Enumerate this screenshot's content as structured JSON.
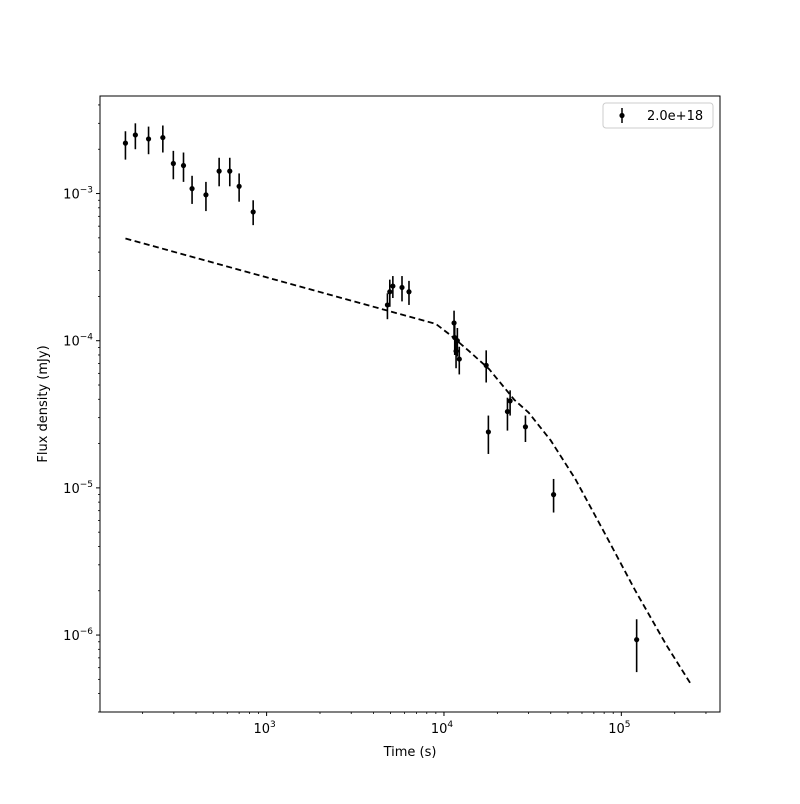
{
  "chart_data": {
    "type": "scatter",
    "title": "",
    "xlabel": "Time (s)",
    "ylabel": "Flux density (mJy)",
    "xscale": "log",
    "yscale": "log",
    "xlim": [
      115,
      360000
    ],
    "ylim": [
      3e-07,
      0.0046
    ],
    "grid": false,
    "legend_position": "top-right",
    "x_ticks": [
      {
        "value": 1000,
        "base": "10",
        "exp": "3"
      },
      {
        "value": 10000,
        "base": "10",
        "exp": "4"
      },
      {
        "value": 100000,
        "base": "10",
        "exp": "5"
      }
    ],
    "y_ticks": [
      {
        "value": 1e-06,
        "base": "10",
        "exp": "−6"
      },
      {
        "value": 1e-05,
        "base": "10",
        "exp": "−5"
      },
      {
        "value": 0.0001,
        "base": "10",
        "exp": "−4"
      },
      {
        "value": 0.001,
        "base": "10",
        "exp": "−3"
      }
    ],
    "series": [
      {
        "name": "2.0e+18",
        "color": "#000000",
        "marker": "circle",
        "points": [
          {
            "x": 160,
            "y": 0.0022,
            "ylo": 0.0017,
            "yhi": 0.00265
          },
          {
            "x": 182,
            "y": 0.0025,
            "ylo": 0.002,
            "yhi": 0.003
          },
          {
            "x": 216,
            "y": 0.00235,
            "ylo": 0.00185,
            "yhi": 0.00285
          },
          {
            "x": 260,
            "y": 0.0024,
            "ylo": 0.0019,
            "yhi": 0.0029
          },
          {
            "x": 298,
            "y": 0.0016,
            "ylo": 0.00125,
            "yhi": 0.00195
          },
          {
            "x": 340,
            "y": 0.00155,
            "ylo": 0.0012,
            "yhi": 0.0019
          },
          {
            "x": 380,
            "y": 0.00108,
            "ylo": 0.00085,
            "yhi": 0.00132
          },
          {
            "x": 455,
            "y": 0.00098,
            "ylo": 0.00076,
            "yhi": 0.0012
          },
          {
            "x": 540,
            "y": 0.00142,
            "ylo": 0.00112,
            "yhi": 0.00175
          },
          {
            "x": 620,
            "y": 0.00142,
            "ylo": 0.00112,
            "yhi": 0.00175
          },
          {
            "x": 700,
            "y": 0.00112,
            "ylo": 0.00088,
            "yhi": 0.00137
          },
          {
            "x": 840,
            "y": 0.00075,
            "ylo": 0.00061,
            "yhi": 0.0009
          },
          {
            "x": 4800,
            "y": 0.000175,
            "ylo": 0.00014,
            "yhi": 0.00021
          },
          {
            "x": 4950,
            "y": 0.000215,
            "ylo": 0.00017,
            "yhi": 0.00026
          },
          {
            "x": 5150,
            "y": 0.000235,
            "ylo": 0.000195,
            "yhi": 0.000275
          },
          {
            "x": 5800,
            "y": 0.00023,
            "ylo": 0.000185,
            "yhi": 0.000275
          },
          {
            "x": 6350,
            "y": 0.000215,
            "ylo": 0.000175,
            "yhi": 0.000255
          },
          {
            "x": 11400,
            "y": 0.000132,
            "ylo": 0.000104,
            "yhi": 0.00016
          },
          {
            "x": 11500,
            "y": 0.000105,
            "ylo": 8e-05,
            "yhi": 0.000128
          },
          {
            "x": 11700,
            "y": 8.5e-05,
            "ylo": 6.5e-05,
            "yhi": 0.000105
          },
          {
            "x": 11900,
            "y": 0.0001,
            "ylo": 7.8e-05,
            "yhi": 0.000122
          },
          {
            "x": 12200,
            "y": 7.5e-05,
            "ylo": 5.9e-05,
            "yhi": 9.1e-05
          },
          {
            "x": 17300,
            "y": 6.8e-05,
            "ylo": 5.2e-05,
            "yhi": 8.6e-05
          },
          {
            "x": 17800,
            "y": 2.4e-05,
            "ylo": 1.7e-05,
            "yhi": 3.1e-05
          },
          {
            "x": 22800,
            "y": 3.3e-05,
            "ylo": 2.45e-05,
            "yhi": 4.1e-05
          },
          {
            "x": 23600,
            "y": 3.9e-05,
            "ylo": 3.1e-05,
            "yhi": 4.6e-05
          },
          {
            "x": 28800,
            "y": 2.6e-05,
            "ylo": 2.05e-05,
            "yhi": 3.1e-05
          },
          {
            "x": 41500,
            "y": 9e-06,
            "ylo": 6.8e-06,
            "yhi": 1.15e-05
          },
          {
            "x": 122000,
            "y": 9.3e-07,
            "ylo": 5.6e-07,
            "yhi": 1.28e-06
          }
        ]
      }
    ],
    "model_curve": {
      "style": "dashed",
      "color": "#000000",
      "points": [
        {
          "x": 160,
          "y": 0.000495
        },
        {
          "x": 9000,
          "y": 0.00013
        },
        {
          "x": 11000,
          "y": 0.000108
        },
        {
          "x": 14000,
          "y": 8.4e-05
        },
        {
          "x": 18000,
          "y": 6.4e-05
        },
        {
          "x": 25000,
          "y": 3.95e-05
        },
        {
          "x": 30000,
          "y": 3.25e-05
        },
        {
          "x": 40000,
          "y": 2.1e-05
        },
        {
          "x": 55000,
          "y": 1.15e-05
        },
        {
          "x": 80000,
          "y": 5e-06
        },
        {
          "x": 120000,
          "y": 2e-06
        },
        {
          "x": 180000,
          "y": 8.5e-07
        },
        {
          "x": 245000,
          "y": 4.7e-07
        }
      ]
    }
  }
}
